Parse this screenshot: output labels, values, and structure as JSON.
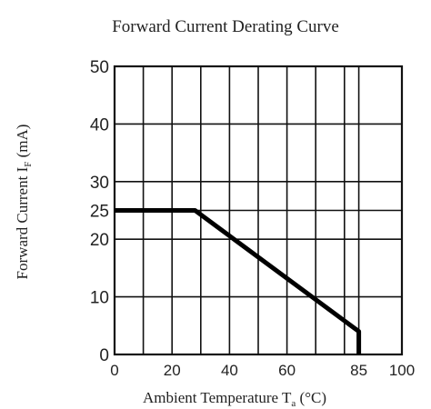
{
  "chart_data": {
    "type": "line",
    "title": "Forward Current Derating Curve",
    "xlabel": {
      "text": "Ambient Temperature T",
      "sub": "a",
      "unit": " (°C)"
    },
    "ylabel": {
      "text": "Forward Current   I",
      "sub": "F",
      "unit": " (mA)"
    },
    "xlim": [
      0,
      100
    ],
    "ylim": [
      0,
      50
    ],
    "x_ticks": [
      "0",
      "20",
      "40",
      "60",
      "85",
      "100"
    ],
    "x_tick_values": [
      0,
      20,
      40,
      60,
      85,
      100
    ],
    "y_ticks": [
      "0",
      "10",
      "20",
      "25",
      "30",
      "40",
      "50"
    ],
    "y_tick_values": [
      0,
      10,
      20,
      25,
      30,
      40,
      50
    ],
    "x_grid_values": [
      0,
      10,
      20,
      30,
      40,
      50,
      60,
      70,
      80,
      85,
      100
    ],
    "y_grid_values": [
      0,
      10,
      20,
      25,
      30,
      40,
      50
    ],
    "grid": true,
    "series": [
      {
        "x": [
          0,
          28,
          85,
          85
        ],
        "y": [
          25,
          25,
          4,
          0
        ]
      }
    ]
  }
}
